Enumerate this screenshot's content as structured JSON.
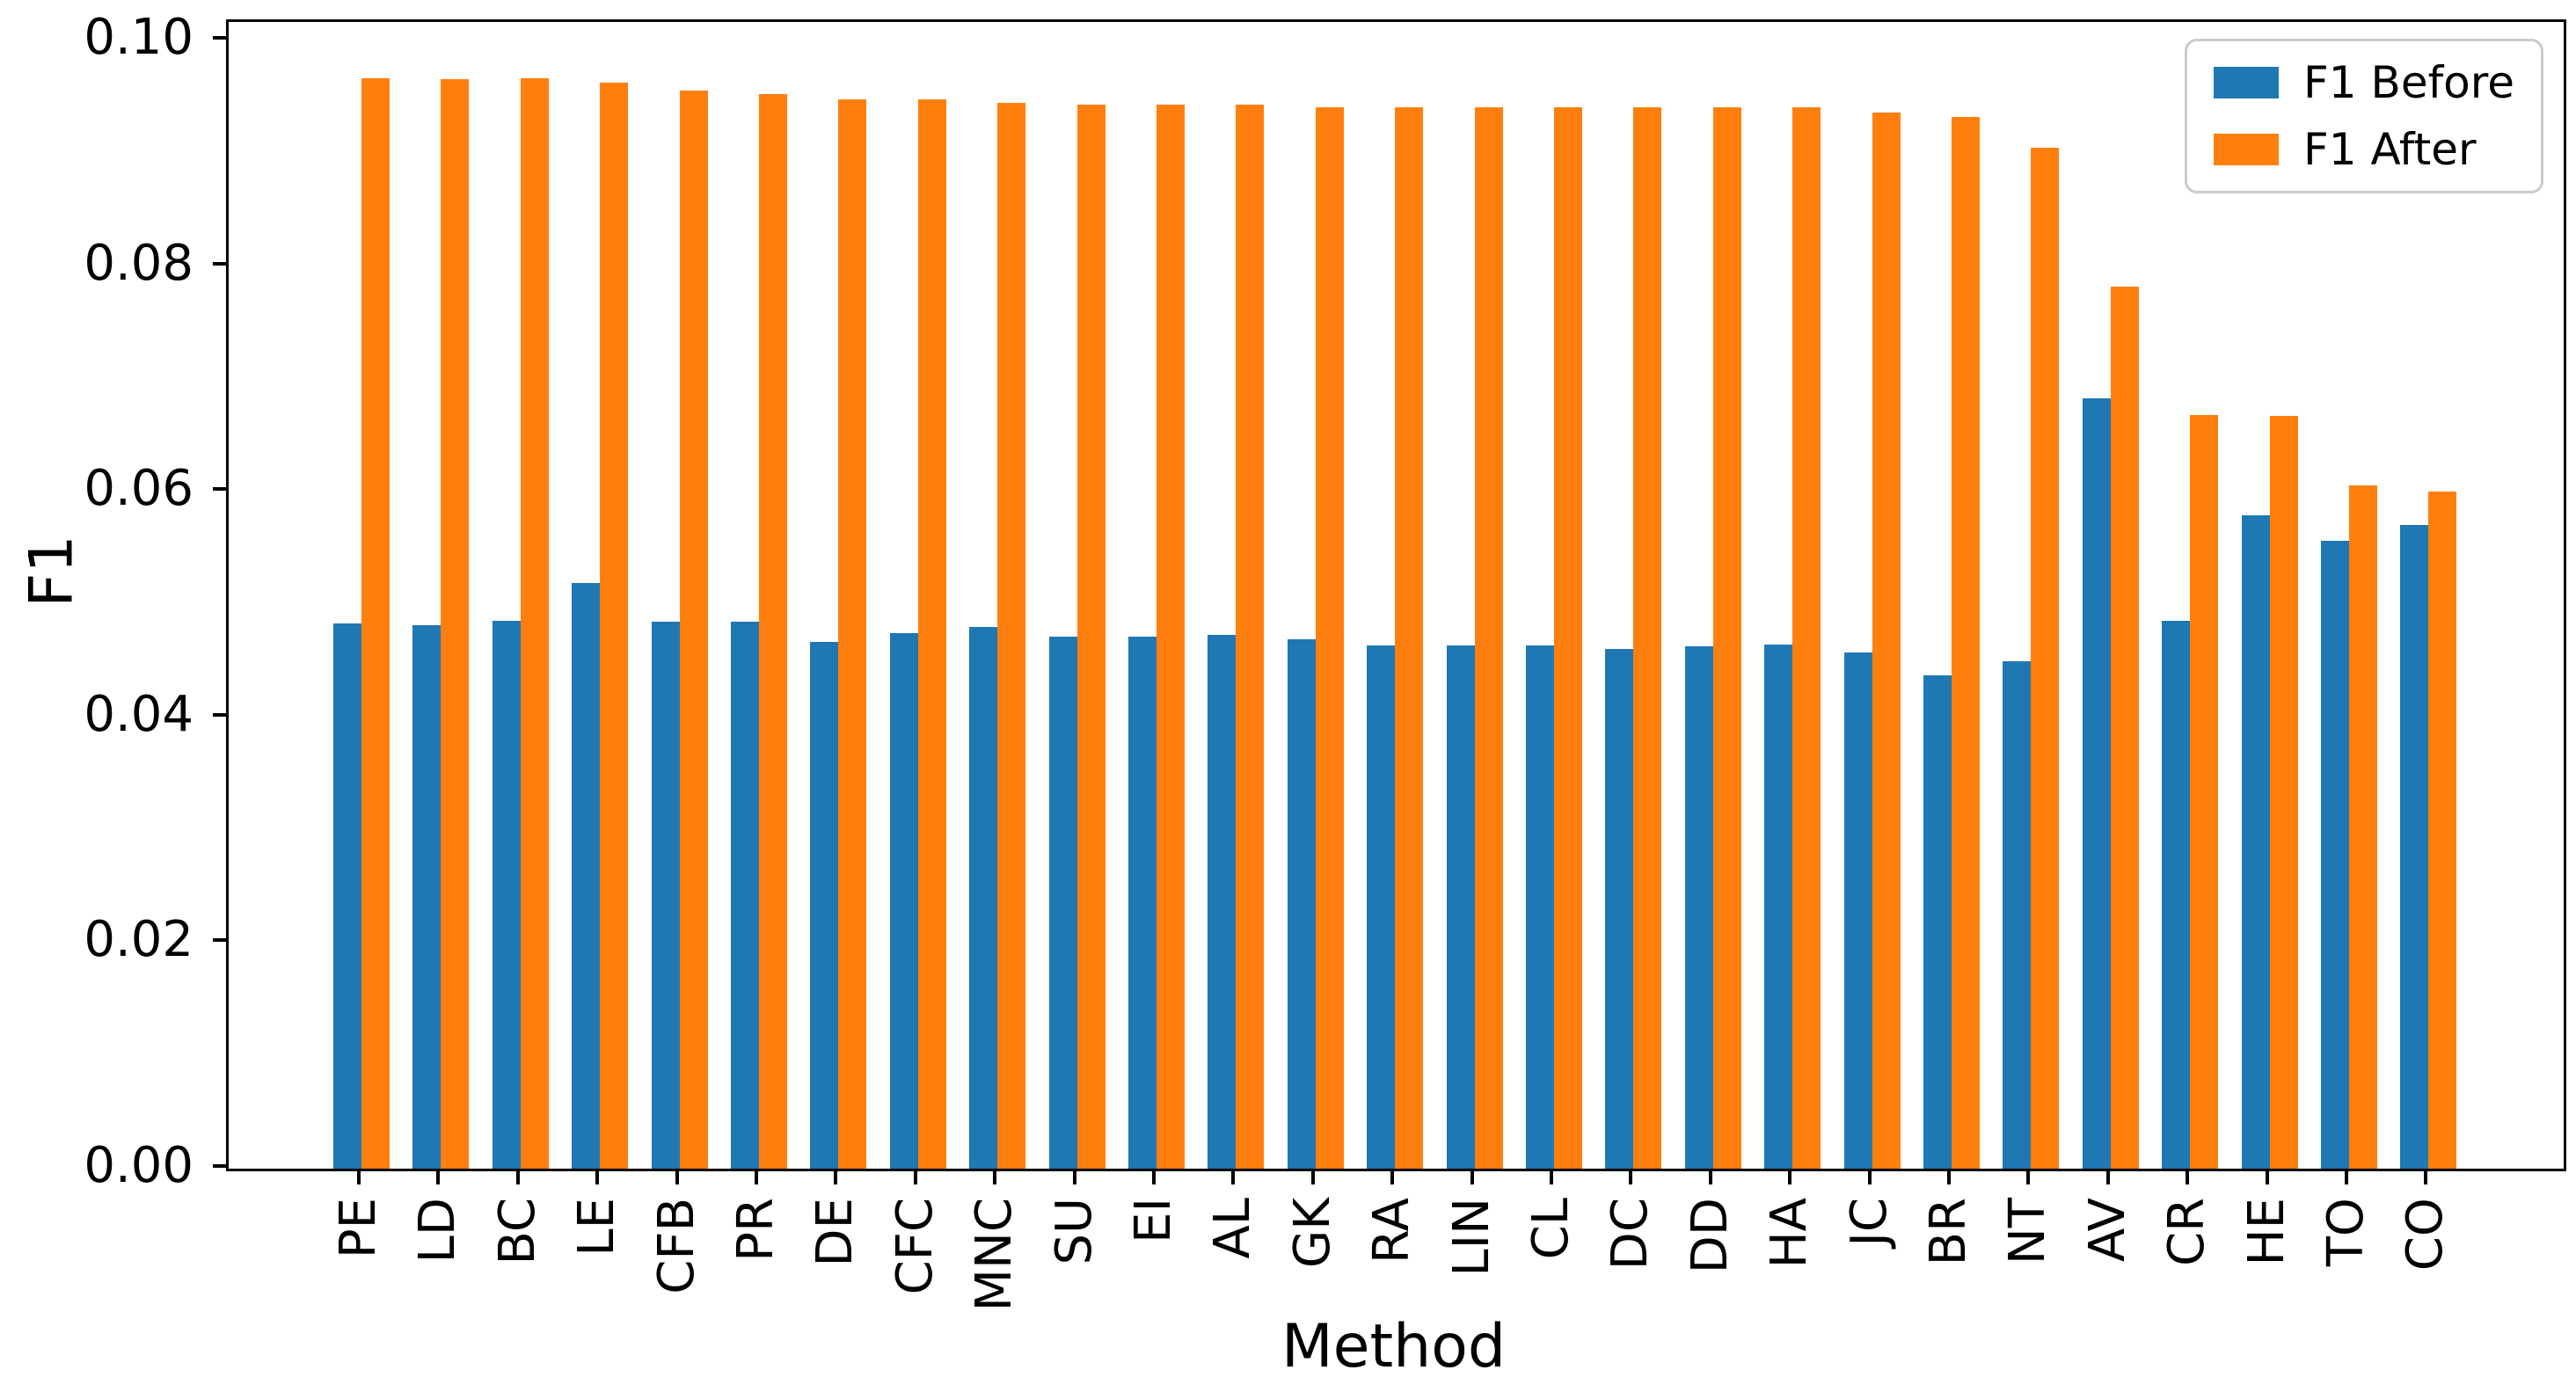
{
  "figure": {
    "ylabel": "F1",
    "xlabel": "Method"
  },
  "legend": {
    "position": "upper right",
    "items": [
      {
        "label": "F1 Before",
        "color": "#1f77b4"
      },
      {
        "label": "F1 After",
        "color": "#ff7f0e"
      }
    ]
  },
  "chart_data": {
    "type": "bar",
    "title": "",
    "xlabel": "Method",
    "ylabel": "F1",
    "categories": [
      "PE",
      "LD",
      "BC",
      "LE",
      "CFB",
      "PR",
      "DE",
      "CFC",
      "MNC",
      "SU",
      "EI",
      "AL",
      "GK",
      "RA",
      "LIN",
      "CL",
      "DC",
      "DD",
      "HA",
      "JC",
      "BR",
      "NT",
      "AV",
      "CR",
      "HE",
      "TO",
      "CO"
    ],
    "series": [
      {
        "name": "F1 Before",
        "color": "#1f77b4",
        "values": [
          0.0483,
          0.0482,
          0.0486,
          0.0519,
          0.0485,
          0.0485,
          0.0467,
          0.0475,
          0.048,
          0.0472,
          0.0472,
          0.0473,
          0.0469,
          0.0464,
          0.0464,
          0.0464,
          0.0461,
          0.0463,
          0.0465,
          0.0458,
          0.0437,
          0.045,
          0.0683,
          0.0486,
          0.0579,
          0.0557,
          0.0571
        ]
      },
      {
        "name": "F1 After",
        "color": "#ff7f0e",
        "values": [
          0.0967,
          0.0966,
          0.0967,
          0.0963,
          0.0956,
          0.0953,
          0.0948,
          0.0948,
          0.0945,
          0.0943,
          0.0943,
          0.0943,
          0.0941,
          0.0941,
          0.0941,
          0.0941,
          0.0941,
          0.0941,
          0.0941,
          0.0936,
          0.0932,
          0.0905,
          0.0782,
          0.0668,
          0.0667,
          0.0606,
          0.06
        ]
      }
    ],
    "ylim": [
      0.0,
      0.10165
    ],
    "y_ticks": [
      {
        "value": 0.0,
        "label": "0.00"
      },
      {
        "value": 0.02,
        "label": "0.02"
      },
      {
        "value": 0.04,
        "label": "0.04"
      },
      {
        "value": 0.06,
        "label": "0.06"
      },
      {
        "value": 0.08,
        "label": "0.08"
      },
      {
        "value": 0.1,
        "label": "0.10"
      }
    ],
    "grid": false,
    "x_tick_rotation": 90,
    "legend_position": "upper right"
  }
}
